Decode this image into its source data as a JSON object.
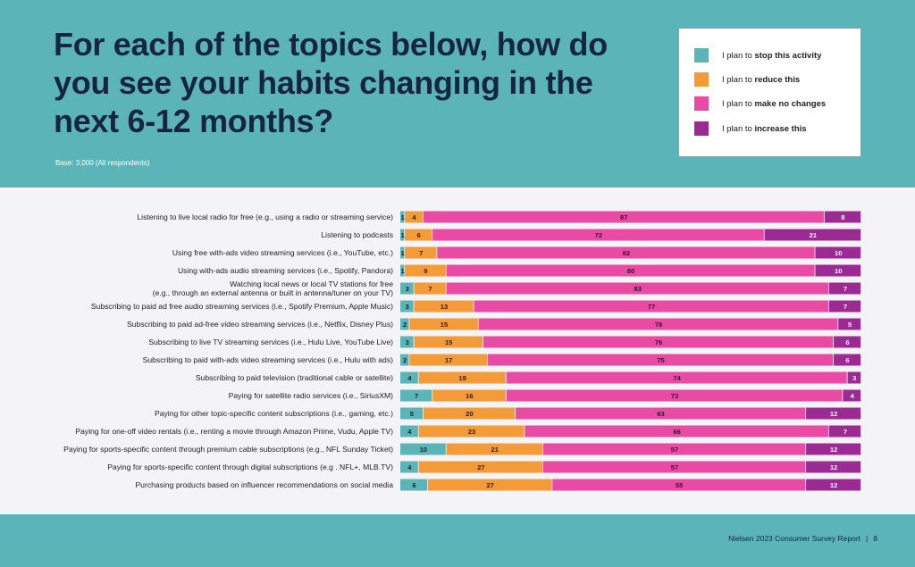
{
  "title": "For each of the topics below, how do you see your habits changing in the next 6-12 months?",
  "base_note": "Base: 3,000 (All respondents)",
  "legend": [
    {
      "prefix": "I plan to ",
      "bold": "stop this activity",
      "color": "#5bb5b8"
    },
    {
      "prefix": "I plan to ",
      "bold": "reduce this",
      "color": "#f29b38"
    },
    {
      "prefix": "I plan to ",
      "bold": "make no changes",
      "color": "#e94aa4"
    },
    {
      "prefix": "I plan to ",
      "bold": "increase this",
      "color": "#9b2b92"
    }
  ],
  "footer": {
    "report": "Nielsen 2023 Consumer Survey Report",
    "separator": "|",
    "page": "8"
  },
  "chart_data": {
    "type": "bar",
    "orientation": "horizontal",
    "stacked": true,
    "normalized_to": 100,
    "series": [
      {
        "name": "I plan to stop this activity",
        "color": "#5bb5b8",
        "values": [
          1,
          1,
          1,
          1,
          3,
          3,
          2,
          3,
          2,
          4,
          7,
          5,
          4,
          10,
          4,
          6
        ]
      },
      {
        "name": "I plan to reduce this",
        "color": "#f29b38",
        "values": [
          4,
          6,
          7,
          9,
          7,
          13,
          15,
          15,
          17,
          19,
          16,
          20,
          23,
          21,
          27,
          27
        ]
      },
      {
        "name": "I plan to make no changes",
        "color": "#e94aa4",
        "values": [
          87,
          72,
          82,
          80,
          83,
          77,
          78,
          76,
          75,
          74,
          73,
          63,
          66,
          57,
          57,
          55
        ]
      },
      {
        "name": "I plan to increase this",
        "color": "#9b2b92",
        "values": [
          8,
          21,
          10,
          10,
          7,
          7,
          5,
          6,
          6,
          3,
          4,
          12,
          7,
          12,
          12,
          12
        ]
      }
    ],
    "categories": [
      [
        "Listening to live local radio for free (e.g., using a radio or streaming service)"
      ],
      [
        "Listening to podcasts"
      ],
      [
        "Using free with-ads video streaming services (i.e., YouTube, etc.)"
      ],
      [
        "Using with-ads audio streaming services (i.e., Spotify, Pandora)"
      ],
      [
        "Watching local news or local TV stations for free",
        "(e.g., through an external antenna or built in antenna/tuner on your TV)"
      ],
      [
        "Subscribing to paid ad free audio streaming services (i.e., Spotify Premium, Apple Music)"
      ],
      [
        "Subscribing to paid ad-free video streaming services (i.e., Netflix, Disney Plus)"
      ],
      [
        "Subscribing to live TV streaming services (i.e., Hulu Live, YouTube Live)"
      ],
      [
        "Subscribing to paid with-ads video streaming services (i.e., Hulu with ads)"
      ],
      [
        "Subscribing to paid television (traditional cable or satellite)"
      ],
      [
        "Paying for satellite radio services (i.e., SiriusXM)"
      ],
      [
        "Paying for other topic-specific content subscriptions (i.e., gaming, etc.)"
      ],
      [
        "Paying for one-off video rentals (i.e., renting a movie through Amazon Prime, Vudu, Apple TV)"
      ],
      [
        "Paying for sports-specific content through premium cable subscriptions (e.g., NFL Sunday Ticket)"
      ],
      [
        "Paying for sports-specific content through digital subscriptions (e.g . NFL+, MLB.TV)"
      ],
      [
        "Purchasing products based on influencer recommendations on social media"
      ]
    ],
    "legend_position": "top-right",
    "grid": false
  }
}
